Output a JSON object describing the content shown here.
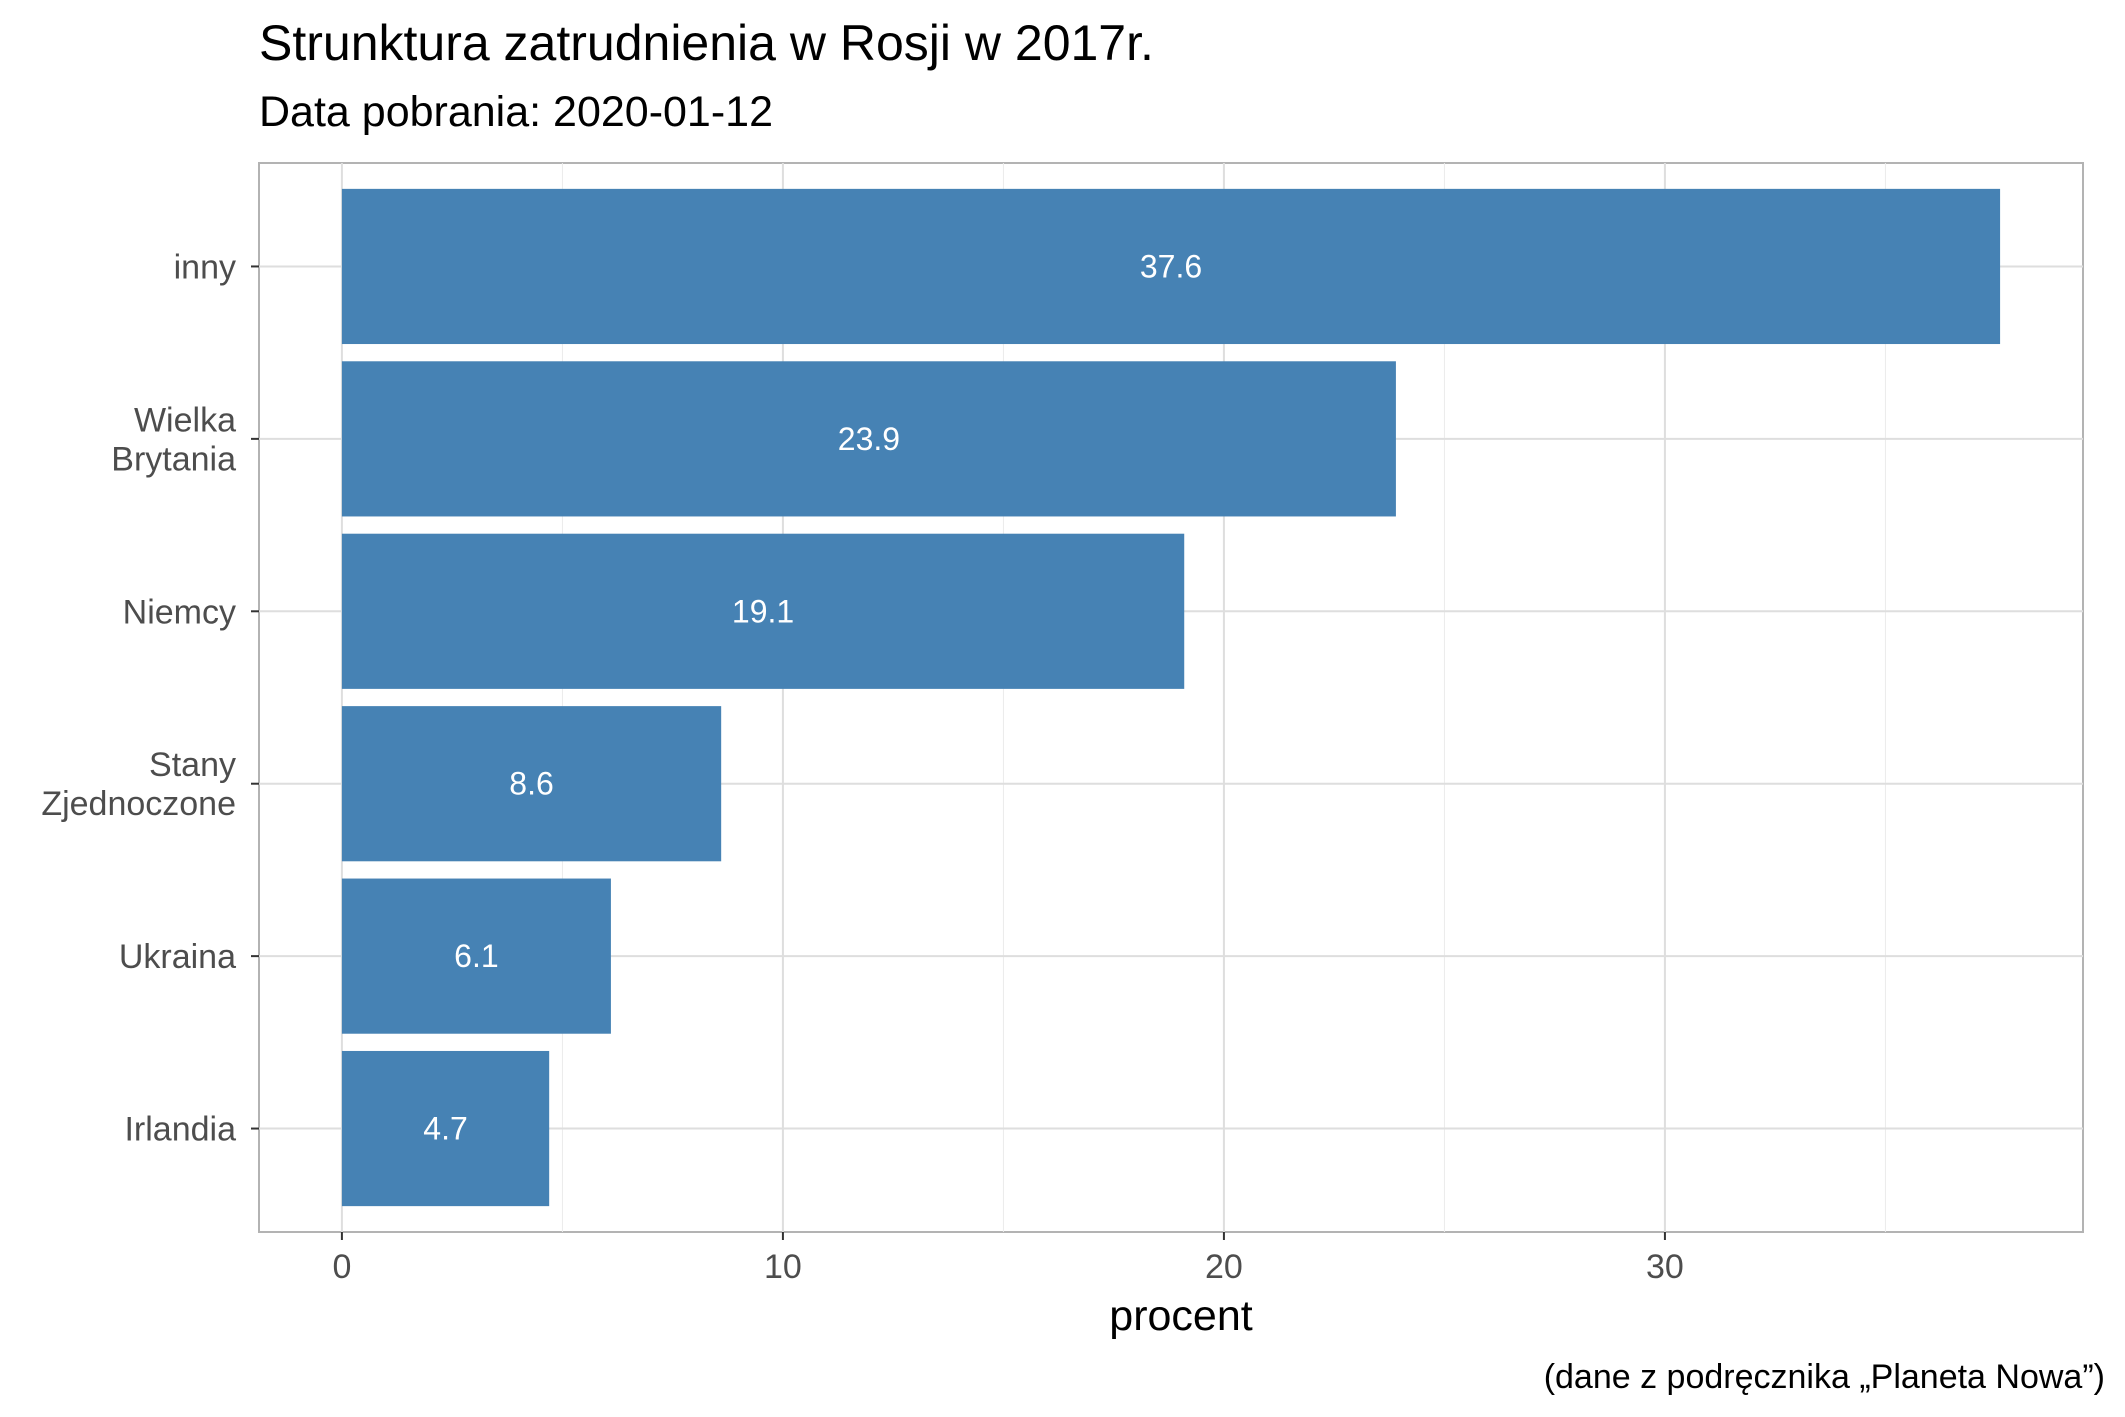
{
  "chart_data": {
    "type": "bar",
    "orientation": "horizontal",
    "title": "Strunktura zatrudnienia w Rosji w 2017r.",
    "subtitle": "Data pobrania: 2020-01-12",
    "caption": "(dane z podręcznika „Planeta Nowa”)",
    "xlabel": "procent",
    "ylabel": "",
    "categories": [
      [
        "inny"
      ],
      [
        "Wielka",
        "Brytania"
      ],
      [
        "Niemcy"
      ],
      [
        "Stany",
        "Zjednoczone"
      ],
      [
        "Ukraina"
      ],
      [
        "Irlandia"
      ]
    ],
    "values": [
      37.6,
      23.9,
      19.1,
      8.6,
      6.1,
      4.7
    ],
    "data_labels": [
      "37.6",
      "23.9",
      "19.1",
      "8.6",
      "6.1",
      "4.7"
    ],
    "x_ticks": [
      0,
      10,
      20,
      30
    ],
    "x_tick_labels": [
      "0",
      "10",
      "20",
      "30"
    ],
    "xlim": [
      -1.88,
      39.48
    ],
    "grid": true,
    "legend": "none",
    "bar_color": "#4682B4",
    "label_color": "#FFFFFF"
  }
}
